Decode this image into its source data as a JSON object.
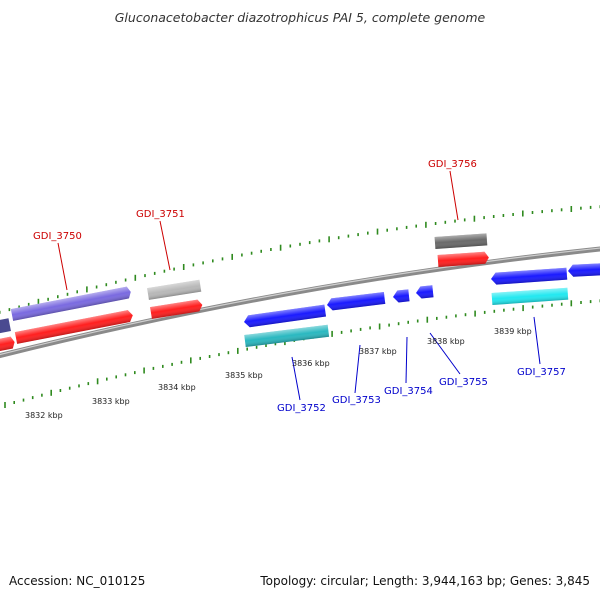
{
  "title": "Gluconacetobacter diazotrophicus PAI 5, complete genome",
  "footer": {
    "accession": "Accession: NC_010125",
    "summary": "Topology: circular; Length: 3,944,163 bp; Genes: 3,845"
  },
  "colors": {
    "backbone": "#8a8a8a",
    "tick": "#2f8a1f",
    "forward_label": "#cc0000",
    "reverse_label": "#0000cc",
    "red": "#ff1f1f",
    "blue": "#1a1aff",
    "purple": "#7a6ae0",
    "cyan": "#22d8e0",
    "teal": "#2ab8c0",
    "gray": "#b8b8b8",
    "dark_gray": "#6a6a6a",
    "navy": "#4a4a90"
  },
  "scale_labels": [
    "3832 kbp",
    "3833 kbp",
    "3834 kbp",
    "3835 kbp",
    "3836 kbp",
    "3837 kbp",
    "3838 kbp",
    "3839 kbp"
  ],
  "gene_labels": [
    "GDI_3750",
    "GDI_3751",
    "GDI_3756",
    "GDI_3752",
    "GDI_3753",
    "GDI_3754",
    "GDI_3755",
    "GDI_3757"
  ]
}
